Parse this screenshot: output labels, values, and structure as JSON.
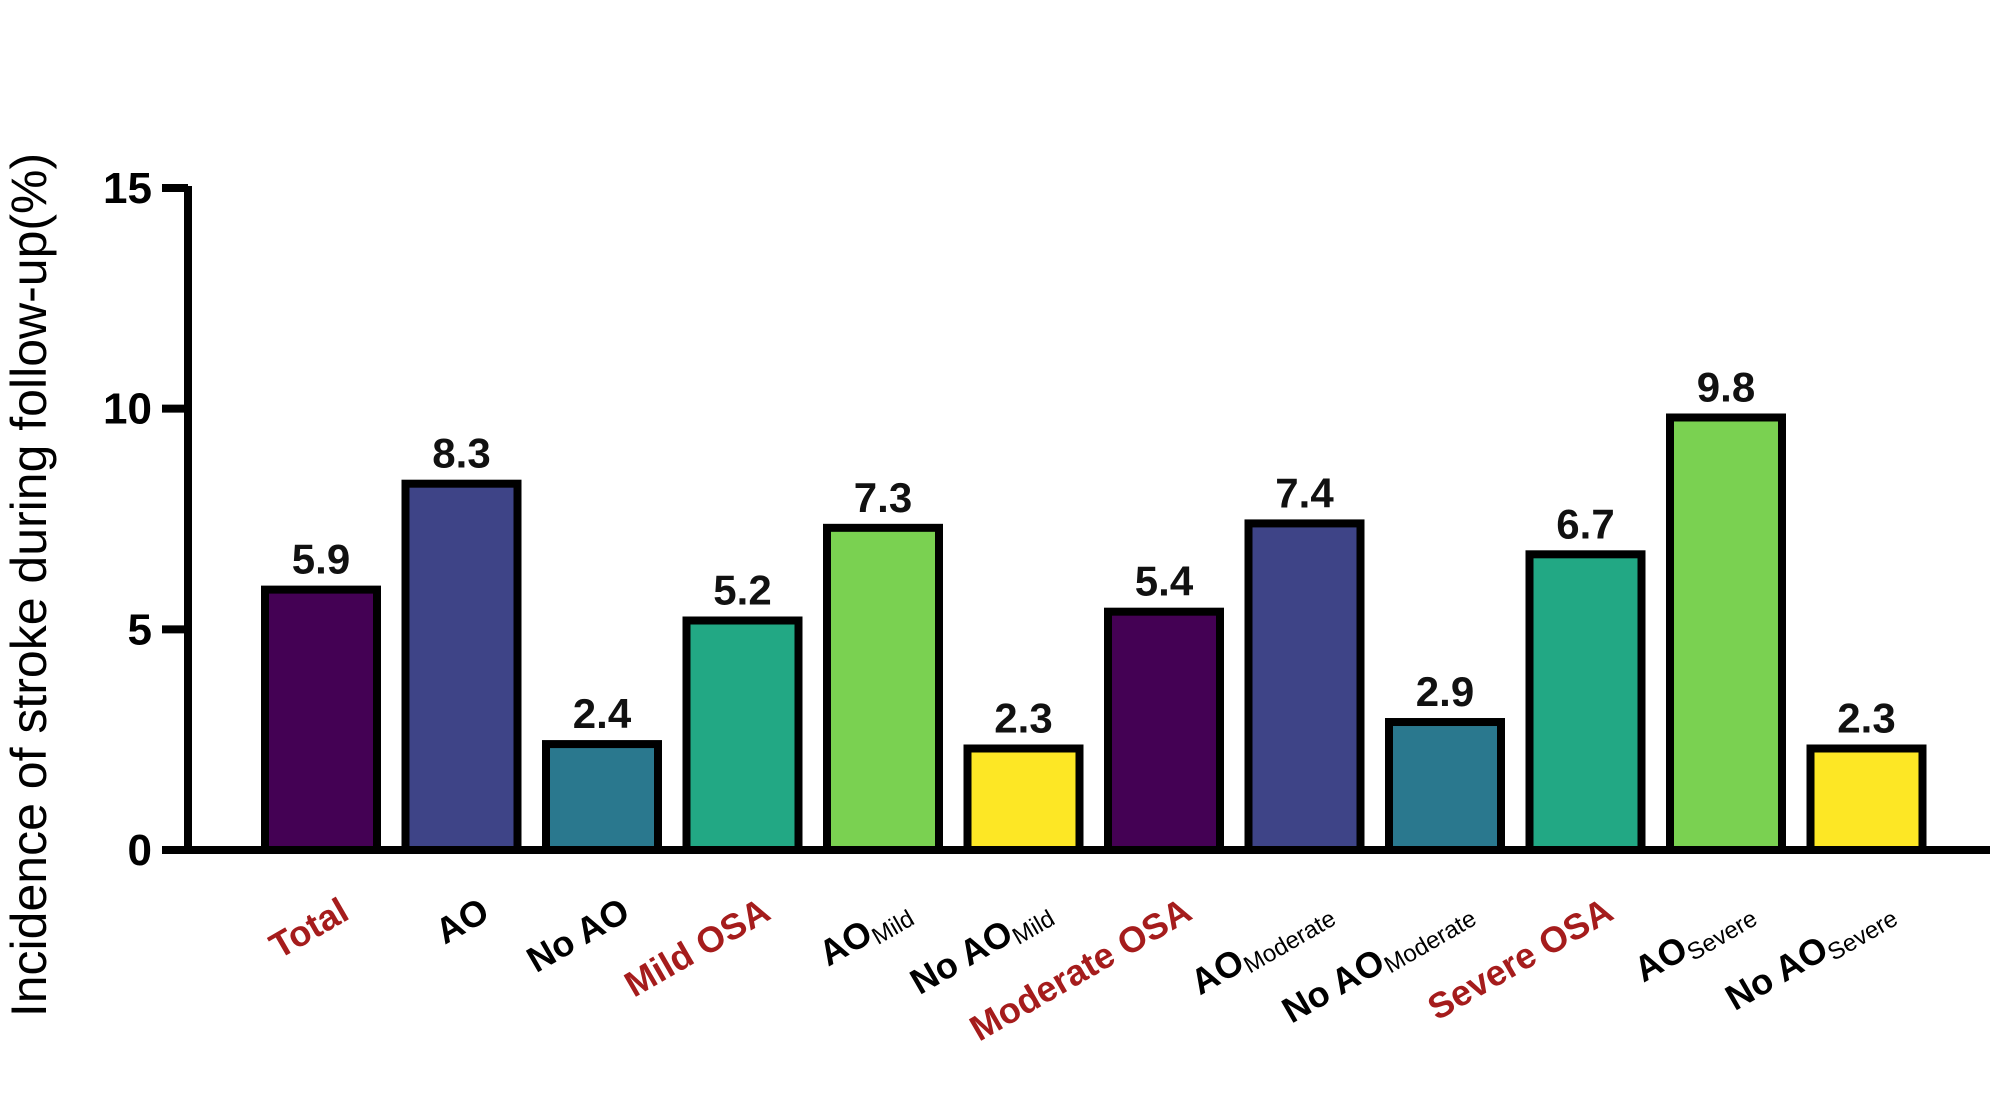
{
  "chart_data": {
    "type": "bar",
    "title": "",
    "ylabel": "Incidence of stroke during follow-up(%)",
    "xlabel": "",
    "ylim": [
      0,
      15
    ],
    "yticks": [
      0,
      5,
      10,
      15
    ],
    "grid": false,
    "categories": [
      {
        "main": "Total",
        "sub": "",
        "highlight": true
      },
      {
        "main": "AO",
        "sub": "",
        "highlight": false
      },
      {
        "main": "No AO",
        "sub": "",
        "highlight": false
      },
      {
        "main": "Mild OSA",
        "sub": "",
        "highlight": true
      },
      {
        "main": "AO",
        "sub": "Mild",
        "highlight": false
      },
      {
        "main": "No AO",
        "sub": "Mild",
        "highlight": false
      },
      {
        "main": "Moderate OSA",
        "sub": "",
        "highlight": true
      },
      {
        "main": "AO",
        "sub": "Moderate",
        "highlight": false
      },
      {
        "main": "No AO",
        "sub": "Moderate",
        "highlight": false
      },
      {
        "main": "Severe OSA",
        "sub": "",
        "highlight": true
      },
      {
        "main": "AO",
        "sub": "Severe",
        "highlight": false
      },
      {
        "main": "No AO",
        "sub": "Severe",
        "highlight": false
      }
    ],
    "values": [
      5.9,
      8.3,
      2.4,
      5.2,
      7.3,
      2.3,
      5.4,
      7.4,
      2.9,
      6.7,
      9.8,
      2.3
    ],
    "value_labels": [
      "5.9",
      "8.3",
      "2.4",
      "5.2",
      "7.3",
      "2.3",
      "5.4",
      "7.4",
      "2.9",
      "6.7",
      "9.8",
      "2.3"
    ],
    "bar_colors": [
      "#440154",
      "#3e4487",
      "#2a788e",
      "#22a884",
      "#7ad151",
      "#fde725",
      "#440154",
      "#3e4487",
      "#2a788e",
      "#22a884",
      "#7ad151",
      "#fde725"
    ],
    "highlight_color": "#a51c1c",
    "label_color": "#000000"
  }
}
